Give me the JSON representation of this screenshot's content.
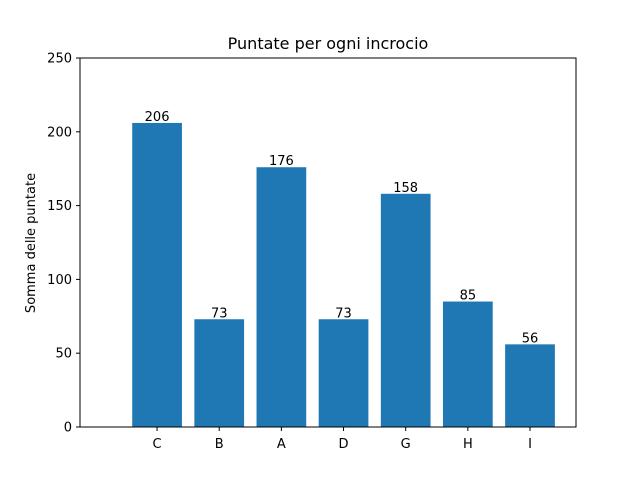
{
  "chart_data": {
    "type": "bar",
    "title": "Puntate per ogni incrocio",
    "xlabel": "",
    "ylabel": "Somma delle puntate",
    "categories": [
      "C",
      "B",
      "A",
      "D",
      "G",
      "H",
      "I"
    ],
    "values": [
      206,
      73,
      176,
      73,
      158,
      85,
      56
    ],
    "value_labels": [
      "206",
      "73",
      "176",
      "73",
      "158",
      "85",
      "56"
    ],
    "ylim": [
      0,
      250
    ],
    "yticks": [
      0,
      50,
      100,
      150,
      200,
      250
    ],
    "grid": false,
    "bar_color": "#1f77b4"
  }
}
